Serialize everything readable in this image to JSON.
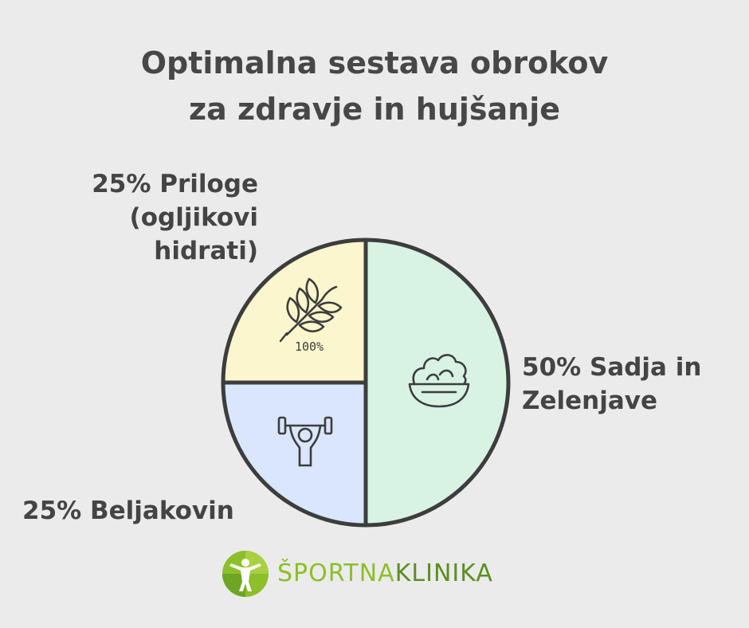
{
  "colors": {
    "background": "#ebebeb",
    "outline": "#3d3d3d",
    "grains": "#fbf6cd",
    "protein": "#d9e6fb",
    "vegetables": "#d8f3e3",
    "brand_light": "#8cbf2a",
    "brand_dark": "#5b8f1e"
  },
  "chart_data": {
    "type": "pie",
    "title": [
      "Optimalna sestava obrokov",
      "za zdravje in hujšanje"
    ],
    "slices": [
      {
        "label": [
          "50% Sadja in",
          "Zelenjave"
        ],
        "value": 50,
        "color": "#d8f3e3",
        "icon": "salad-bowl-icon"
      },
      {
        "label": [
          "25% Beljakovin"
        ],
        "value": 25,
        "color": "#d9e6fb",
        "icon": "weightlifter-icon"
      },
      {
        "label": [
          "25% Priloge",
          "(ogljikovi",
          "hidrati)"
        ],
        "value": 25,
        "color": "#fbf6cd",
        "icon": "wheat-icon",
        "icon_text": "100%"
      }
    ]
  },
  "logo": {
    "part1": "ŠPORTNA",
    "part2": "KLINIKA"
  }
}
